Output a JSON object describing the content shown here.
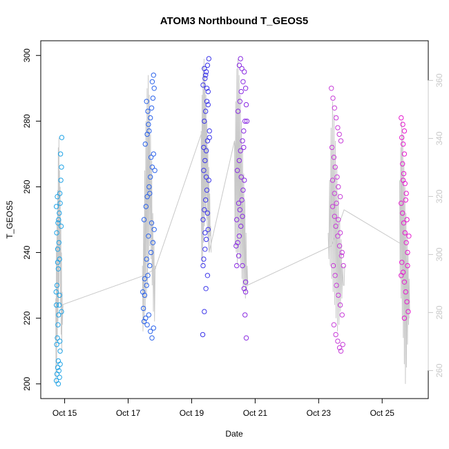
{
  "chart_data": {
    "type": "scatter",
    "title": "ATOM3 Northbound T_GEOS5",
    "xlabel": "Date",
    "ylabel": "T_GEOS5",
    "x_ticks": [
      "Oct 15",
      "Oct 17",
      "Oct 19",
      "Oct 21",
      "Oct 23",
      "Oct 25"
    ],
    "x_tick_values": [
      15,
      17,
      19,
      21,
      23,
      25
    ],
    "xlim": [
      14.4,
      26.3
    ],
    "ylim": [
      197,
      303
    ],
    "y_ticks": [
      200,
      220,
      240,
      260,
      280,
      300
    ],
    "y2lim": [
      252,
      372
    ],
    "y2_ticks": [
      260,
      280,
      300,
      320,
      340,
      360
    ],
    "grid": false,
    "legend": "none",
    "series": [
      {
        "color": "#1fa3e6",
        "day_range": [
          14.72,
          14.94
        ],
        "y_range": [
          200,
          275
        ],
        "points": [
          [
            14.74,
            201
          ],
          [
            14.76,
            203
          ],
          [
            14.78,
            205
          ],
          [
            14.8,
            207
          ],
          [
            14.82,
            204
          ],
          [
            14.84,
            202
          ],
          [
            14.86,
            206
          ],
          [
            14.75,
            212
          ],
          [
            14.77,
            214
          ],
          [
            14.79,
            218
          ],
          [
            14.81,
            221
          ],
          [
            14.83,
            224
          ],
          [
            14.85,
            213
          ],
          [
            14.73,
            228
          ],
          [
            14.76,
            230
          ],
          [
            14.8,
            235
          ],
          [
            14.84,
            238
          ],
          [
            14.78,
            241
          ],
          [
            14.82,
            243
          ],
          [
            14.75,
            246
          ],
          [
            14.79,
            249
          ],
          [
            14.83,
            252
          ],
          [
            14.86,
            255
          ],
          [
            14.77,
            257
          ],
          [
            14.81,
            250
          ],
          [
            14.74,
            254
          ],
          [
            14.88,
            262
          ],
          [
            14.9,
            266
          ],
          [
            14.87,
            270
          ],
          [
            14.91,
            275
          ],
          [
            14.85,
            258
          ],
          [
            14.89,
            248
          ],
          [
            14.9,
            222
          ],
          [
            14.84,
            227
          ],
          [
            14.78,
            237
          ],
          [
            14.74,
            224
          ],
          [
            14.8,
            200
          ],
          [
            14.86,
            210
          ]
        ],
        "trace_top": [
          226,
          242,
          250,
          259,
          272,
          275,
          265,
          260,
          250,
          240,
          228,
          222
        ],
        "trace_bottom": [
          200,
          205,
          214,
          219,
          224,
          230,
          238,
          224,
          215,
          210,
          218,
          224
        ]
      },
      {
        "color": "#2a62ea",
        "day_range": [
          17.45,
          17.85
        ],
        "y_range": [
          213,
          294
        ],
        "points": [
          [
            17.5,
            219
          ],
          [
            17.55,
            220
          ],
          [
            17.6,
            218
          ],
          [
            17.65,
            221
          ],
          [
            17.7,
            216
          ],
          [
            17.75,
            214
          ],
          [
            17.8,
            217
          ],
          [
            17.48,
            223
          ],
          [
            17.52,
            227
          ],
          [
            17.58,
            230
          ],
          [
            17.62,
            233
          ],
          [
            17.68,
            236
          ],
          [
            17.72,
            240
          ],
          [
            17.78,
            243
          ],
          [
            17.82,
            247
          ],
          [
            17.5,
            250
          ],
          [
            17.56,
            254
          ],
          [
            17.6,
            257
          ],
          [
            17.66,
            260
          ],
          [
            17.7,
            263
          ],
          [
            17.76,
            266
          ],
          [
            17.8,
            270
          ],
          [
            17.54,
            273
          ],
          [
            17.6,
            276
          ],
          [
            17.64,
            279
          ],
          [
            17.7,
            281
          ],
          [
            17.74,
            284
          ],
          [
            17.78,
            287
          ],
          [
            17.82,
            290
          ],
          [
            17.76,
            292
          ],
          [
            17.8,
            294
          ],
          [
            17.58,
            286
          ],
          [
            17.62,
            283
          ],
          [
            17.66,
            277
          ],
          [
            17.72,
            269
          ],
          [
            17.68,
            258
          ],
          [
            17.74,
            249
          ],
          [
            17.64,
            245
          ],
          [
            17.58,
            238
          ],
          [
            17.52,
            232
          ],
          [
            17.84,
            265
          ],
          [
            17.46,
            228
          ]
        ],
        "trace_top": [
          236,
          250,
          265,
          280,
          290,
          294,
          288,
          276,
          268,
          252,
          244,
          236
        ],
        "trace_bottom": [
          216,
          218,
          222,
          226,
          230,
          236,
          242,
          238,
          230,
          222,
          219,
          235
        ]
      },
      {
        "color": "#3b35ea",
        "day_range": [
          19.3,
          19.6
        ],
        "y_range": [
          215,
          299
        ],
        "points": [
          [
            19.35,
            215
          ],
          [
            19.4,
            222
          ],
          [
            19.45,
            229
          ],
          [
            19.5,
            233
          ],
          [
            19.38,
            238
          ],
          [
            19.42,
            241
          ],
          [
            19.46,
            244
          ],
          [
            19.52,
            247
          ],
          [
            19.36,
            250
          ],
          [
            19.4,
            253
          ],
          [
            19.44,
            256
          ],
          [
            19.48,
            259
          ],
          [
            19.54,
            262
          ],
          [
            19.38,
            265
          ],
          [
            19.42,
            268
          ],
          [
            19.46,
            271
          ],
          [
            19.5,
            274
          ],
          [
            19.56,
            277
          ],
          [
            19.4,
            280
          ],
          [
            19.44,
            283
          ],
          [
            19.48,
            286
          ],
          [
            19.52,
            289
          ],
          [
            19.36,
            291
          ],
          [
            19.42,
            293
          ],
          [
            19.46,
            295
          ],
          [
            19.5,
            297
          ],
          [
            19.54,
            299
          ],
          [
            19.4,
            296
          ],
          [
            19.44,
            294
          ],
          [
            19.48,
            290
          ],
          [
            19.52,
            285
          ],
          [
            19.56,
            275
          ],
          [
            19.38,
            272
          ],
          [
            19.46,
            263
          ],
          [
            19.5,
            252
          ],
          [
            19.42,
            246
          ],
          [
            19.36,
            236
          ]
        ],
        "trace_top": [
          277,
          288,
          297,
          299,
          294,
          288,
          280,
          272,
          266,
          258,
          248
        ],
        "trace_bottom": [
          238,
          236,
          243,
          248,
          252,
          256,
          250,
          244,
          240,
          245,
          240
        ]
      },
      {
        "color": "#8a2be2",
        "day_range": [
          20.35,
          20.75
        ],
        "y_range": [
          214,
          299
        ],
        "points": [
          [
            20.4,
            242
          ],
          [
            20.45,
            243
          ],
          [
            20.5,
            245
          ],
          [
            20.55,
            248
          ],
          [
            20.6,
            251
          ],
          [
            20.65,
            229
          ],
          [
            20.7,
            228
          ],
          [
            20.68,
            221
          ],
          [
            20.72,
            214
          ],
          [
            20.42,
            236
          ],
          [
            20.48,
            239
          ],
          [
            20.52,
            253
          ],
          [
            20.58,
            256
          ],
          [
            20.62,
            259
          ],
          [
            20.66,
            262
          ],
          [
            20.44,
            265
          ],
          [
            20.5,
            268
          ],
          [
            20.54,
            271
          ],
          [
            20.6,
            274
          ],
          [
            20.64,
            277
          ],
          [
            20.68,
            280
          ],
          [
            20.46,
            283
          ],
          [
            20.52,
            286
          ],
          [
            20.56,
            289
          ],
          [
            20.62,
            292
          ],
          [
            20.66,
            295
          ],
          [
            20.5,
            297
          ],
          [
            20.54,
            299
          ],
          [
            20.58,
            296
          ],
          [
            20.7,
            290
          ],
          [
            20.72,
            285
          ],
          [
            20.74,
            280
          ],
          [
            20.64,
            272
          ],
          [
            20.56,
            263
          ],
          [
            20.48,
            255
          ],
          [
            20.42,
            250
          ],
          [
            20.6,
            236
          ],
          [
            20.7,
            231
          ]
        ],
        "trace_top": [
          274,
          286,
          296,
          299,
          294,
          288,
          280,
          272,
          264,
          256,
          246,
          236
        ],
        "trace_bottom": [
          242,
          240,
          236,
          240,
          238,
          236,
          232,
          228,
          230,
          226,
          228,
          230
        ]
      },
      {
        "color": "#c73dd8",
        "day_range": [
          23.3,
          23.8
        ],
        "y_range": [
          210,
          290
        ],
        "points": [
          [
            23.4,
            290
          ],
          [
            23.45,
            287
          ],
          [
            23.5,
            284
          ],
          [
            23.55,
            281
          ],
          [
            23.6,
            278
          ],
          [
            23.65,
            276
          ],
          [
            23.7,
            274
          ],
          [
            23.42,
            272
          ],
          [
            23.48,
            269
          ],
          [
            23.52,
            266
          ],
          [
            23.58,
            263
          ],
          [
            23.62,
            260
          ],
          [
            23.68,
            257
          ],
          [
            23.44,
            254
          ],
          [
            23.5,
            251
          ],
          [
            23.54,
            248
          ],
          [
            23.6,
            245
          ],
          [
            23.66,
            242
          ],
          [
            23.72,
            239
          ],
          [
            23.46,
            236
          ],
          [
            23.52,
            233
          ],
          [
            23.56,
            230
          ],
          [
            23.62,
            227
          ],
          [
            23.68,
            224
          ],
          [
            23.74,
            221
          ],
          [
            23.48,
            218
          ],
          [
            23.54,
            215
          ],
          [
            23.6,
            213
          ],
          [
            23.66,
            211
          ],
          [
            23.7,
            210
          ],
          [
            23.76,
            212
          ],
          [
            23.44,
            262
          ],
          [
            23.5,
            258
          ],
          [
            23.56,
            255
          ],
          [
            23.62,
            250
          ],
          [
            23.68,
            246
          ],
          [
            23.74,
            240
          ],
          [
            23.78,
            236
          ]
        ],
        "trace_top": [
          246,
          262,
          278,
          286,
          282,
          274,
          266,
          258,
          250,
          244,
          236,
          230
        ],
        "trace_bottom": [
          238,
          236,
          232,
          228,
          224,
          220,
          216,
          218,
          222,
          226,
          230,
          236
        ]
      },
      {
        "color": "#e619cf",
        "day_range": [
          25.55,
          25.85
        ],
        "y_range": [
          220,
          281
        ],
        "points": [
          [
            25.6,
            281
          ],
          [
            25.65,
            279
          ],
          [
            25.7,
            277
          ],
          [
            25.62,
            275
          ],
          [
            25.66,
            273
          ],
          [
            25.7,
            270
          ],
          [
            25.64,
            267
          ],
          [
            25.68,
            264
          ],
          [
            25.72,
            261
          ],
          [
            25.76,
            258
          ],
          [
            25.6,
            255
          ],
          [
            25.64,
            252
          ],
          [
            25.68,
            249
          ],
          [
            25.72,
            246
          ],
          [
            25.76,
            243
          ],
          [
            25.8,
            240
          ],
          [
            25.62,
            237
          ],
          [
            25.66,
            234
          ],
          [
            25.7,
            231
          ],
          [
            25.74,
            228
          ],
          [
            25.78,
            225
          ],
          [
            25.82,
            222
          ],
          [
            25.7,
            220
          ],
          [
            25.66,
            262
          ],
          [
            25.74,
            256
          ],
          [
            25.78,
            250
          ],
          [
            25.6,
            233
          ],
          [
            25.84,
            245
          ],
          [
            25.8,
            236
          ]
        ],
        "trace_top": [
          262,
          272,
          280,
          276,
          268,
          260,
          252,
          246,
          240,
          232
        ],
        "trace_bottom": [
          232,
          226,
          220,
          214,
          206,
          200,
          205,
          212,
          218,
          222
        ]
      }
    ],
    "connector_line": {
      "color": "#c8c8c8",
      "points": [
        [
          14.9,
          224
        ],
        [
          17.5,
          233
        ],
        [
          17.85,
          235
        ],
        [
          19.3,
          276
        ],
        [
          19.55,
          240
        ],
        [
          20.35,
          274
        ],
        [
          20.75,
          230
        ],
        [
          23.4,
          242
        ],
        [
          23.8,
          253
        ],
        [
          25.7,
          242
        ],
        [
          25.85,
          220
        ]
      ]
    }
  }
}
